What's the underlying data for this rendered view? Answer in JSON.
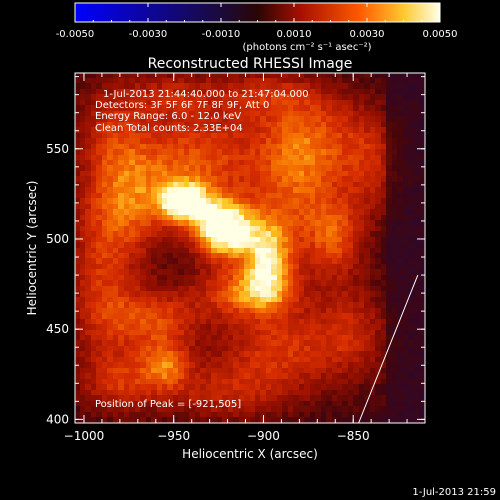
{
  "colorbar": {
    "tick_labels": [
      "-0.0050",
      "-0.0030",
      "-0.0010",
      "0.0010",
      "0.0030",
      "0.0050"
    ],
    "units_label": "(photons cm⁻² s⁻¹ asec⁻²)",
    "range": [
      -0.005,
      0.005
    ]
  },
  "plot": {
    "title": "Reconstructed RHESSI Image",
    "info_lines": [
      "1-Jul-2013 21:44:40.000 to 21:47:04.000",
      "Detectors: 3F 5F 6F 7F 8F 9F, Att 0",
      "Energy Range: 6.0 - 12.0 keV",
      "Clean     Total counts: 2.33E+04"
    ],
    "peak_label": "Position of Peak = [-921,505]",
    "footer_timestamp": "1-Jul-2013 21:59"
  },
  "chart_data": {
    "type": "heatmap",
    "title": "Reconstructed RHESSI Image",
    "xlabel": "Heliocentric X (arcsec)",
    "ylabel": "Heliocentric Y (arcsec)",
    "xlim": [
      -1005,
      -810
    ],
    "ylim": [
      398,
      592
    ],
    "x_ticks": [
      -1000,
      -950,
      -900,
      -850
    ],
    "x_tick_labels": [
      "−1000",
      "−950",
      "−900",
      "−850"
    ],
    "y_ticks": [
      400,
      450,
      500,
      550
    ],
    "y_tick_labels": [
      "400",
      "450",
      "500",
      "550"
    ],
    "peak": {
      "x": -921,
      "y": 505
    },
    "intensity_blobs": [
      {
        "x": -922,
        "y": 505,
        "sx": 12,
        "sy": 12,
        "a": 1.0
      },
      {
        "x": -944,
        "y": 520,
        "sx": 10,
        "sy": 8,
        "a": 0.78
      },
      {
        "x": -897,
        "y": 490,
        "sx": 10,
        "sy": 16,
        "a": 0.68
      },
      {
        "x": -908,
        "y": 470,
        "sx": 20,
        "sy": 10,
        "a": 0.55
      },
      {
        "x": -975,
        "y": 520,
        "sx": 18,
        "sy": 22,
        "a": 0.5
      },
      {
        "x": -935,
        "y": 545,
        "sx": 25,
        "sy": 18,
        "a": 0.48
      },
      {
        "x": -880,
        "y": 530,
        "sx": 18,
        "sy": 25,
        "a": 0.45
      },
      {
        "x": -960,
        "y": 455,
        "sx": 18,
        "sy": 12,
        "a": 0.45
      },
      {
        "x": -955,
        "y": 430,
        "sx": 10,
        "sy": 10,
        "a": 0.45
      },
      {
        "x": -890,
        "y": 440,
        "sx": 25,
        "sy": 15,
        "a": 0.4
      },
      {
        "x": -860,
        "y": 500,
        "sx": 12,
        "sy": 15,
        "a": 0.42
      },
      {
        "x": -990,
        "y": 470,
        "sx": 14,
        "sy": 30,
        "a": 0.38
      },
      {
        "x": -985,
        "y": 560,
        "sx": 15,
        "sy": 20,
        "a": 0.3
      },
      {
        "x": -920,
        "y": 415,
        "sx": 30,
        "sy": 12,
        "a": 0.33
      },
      {
        "x": -870,
        "y": 560,
        "sx": 22,
        "sy": 18,
        "a": 0.33
      },
      {
        "x": -840,
        "y": 540,
        "sx": 12,
        "sy": 20,
        "a": 0.3
      },
      {
        "x": -850,
        "y": 450,
        "sx": 15,
        "sy": 20,
        "a": 0.3
      },
      {
        "x": -980,
        "y": 420,
        "sx": 15,
        "sy": 12,
        "a": 0.32
      },
      {
        "x": -950,
        "y": 580,
        "sx": 20,
        "sy": 10,
        "a": 0.28
      },
      {
        "x": -900,
        "y": 580,
        "sx": 20,
        "sy": 10,
        "a": 0.28
      }
    ],
    "limb_line": [
      {
        "x": -847,
        "y": 398
      },
      {
        "x": -814,
        "y": 480
      }
    ]
  }
}
